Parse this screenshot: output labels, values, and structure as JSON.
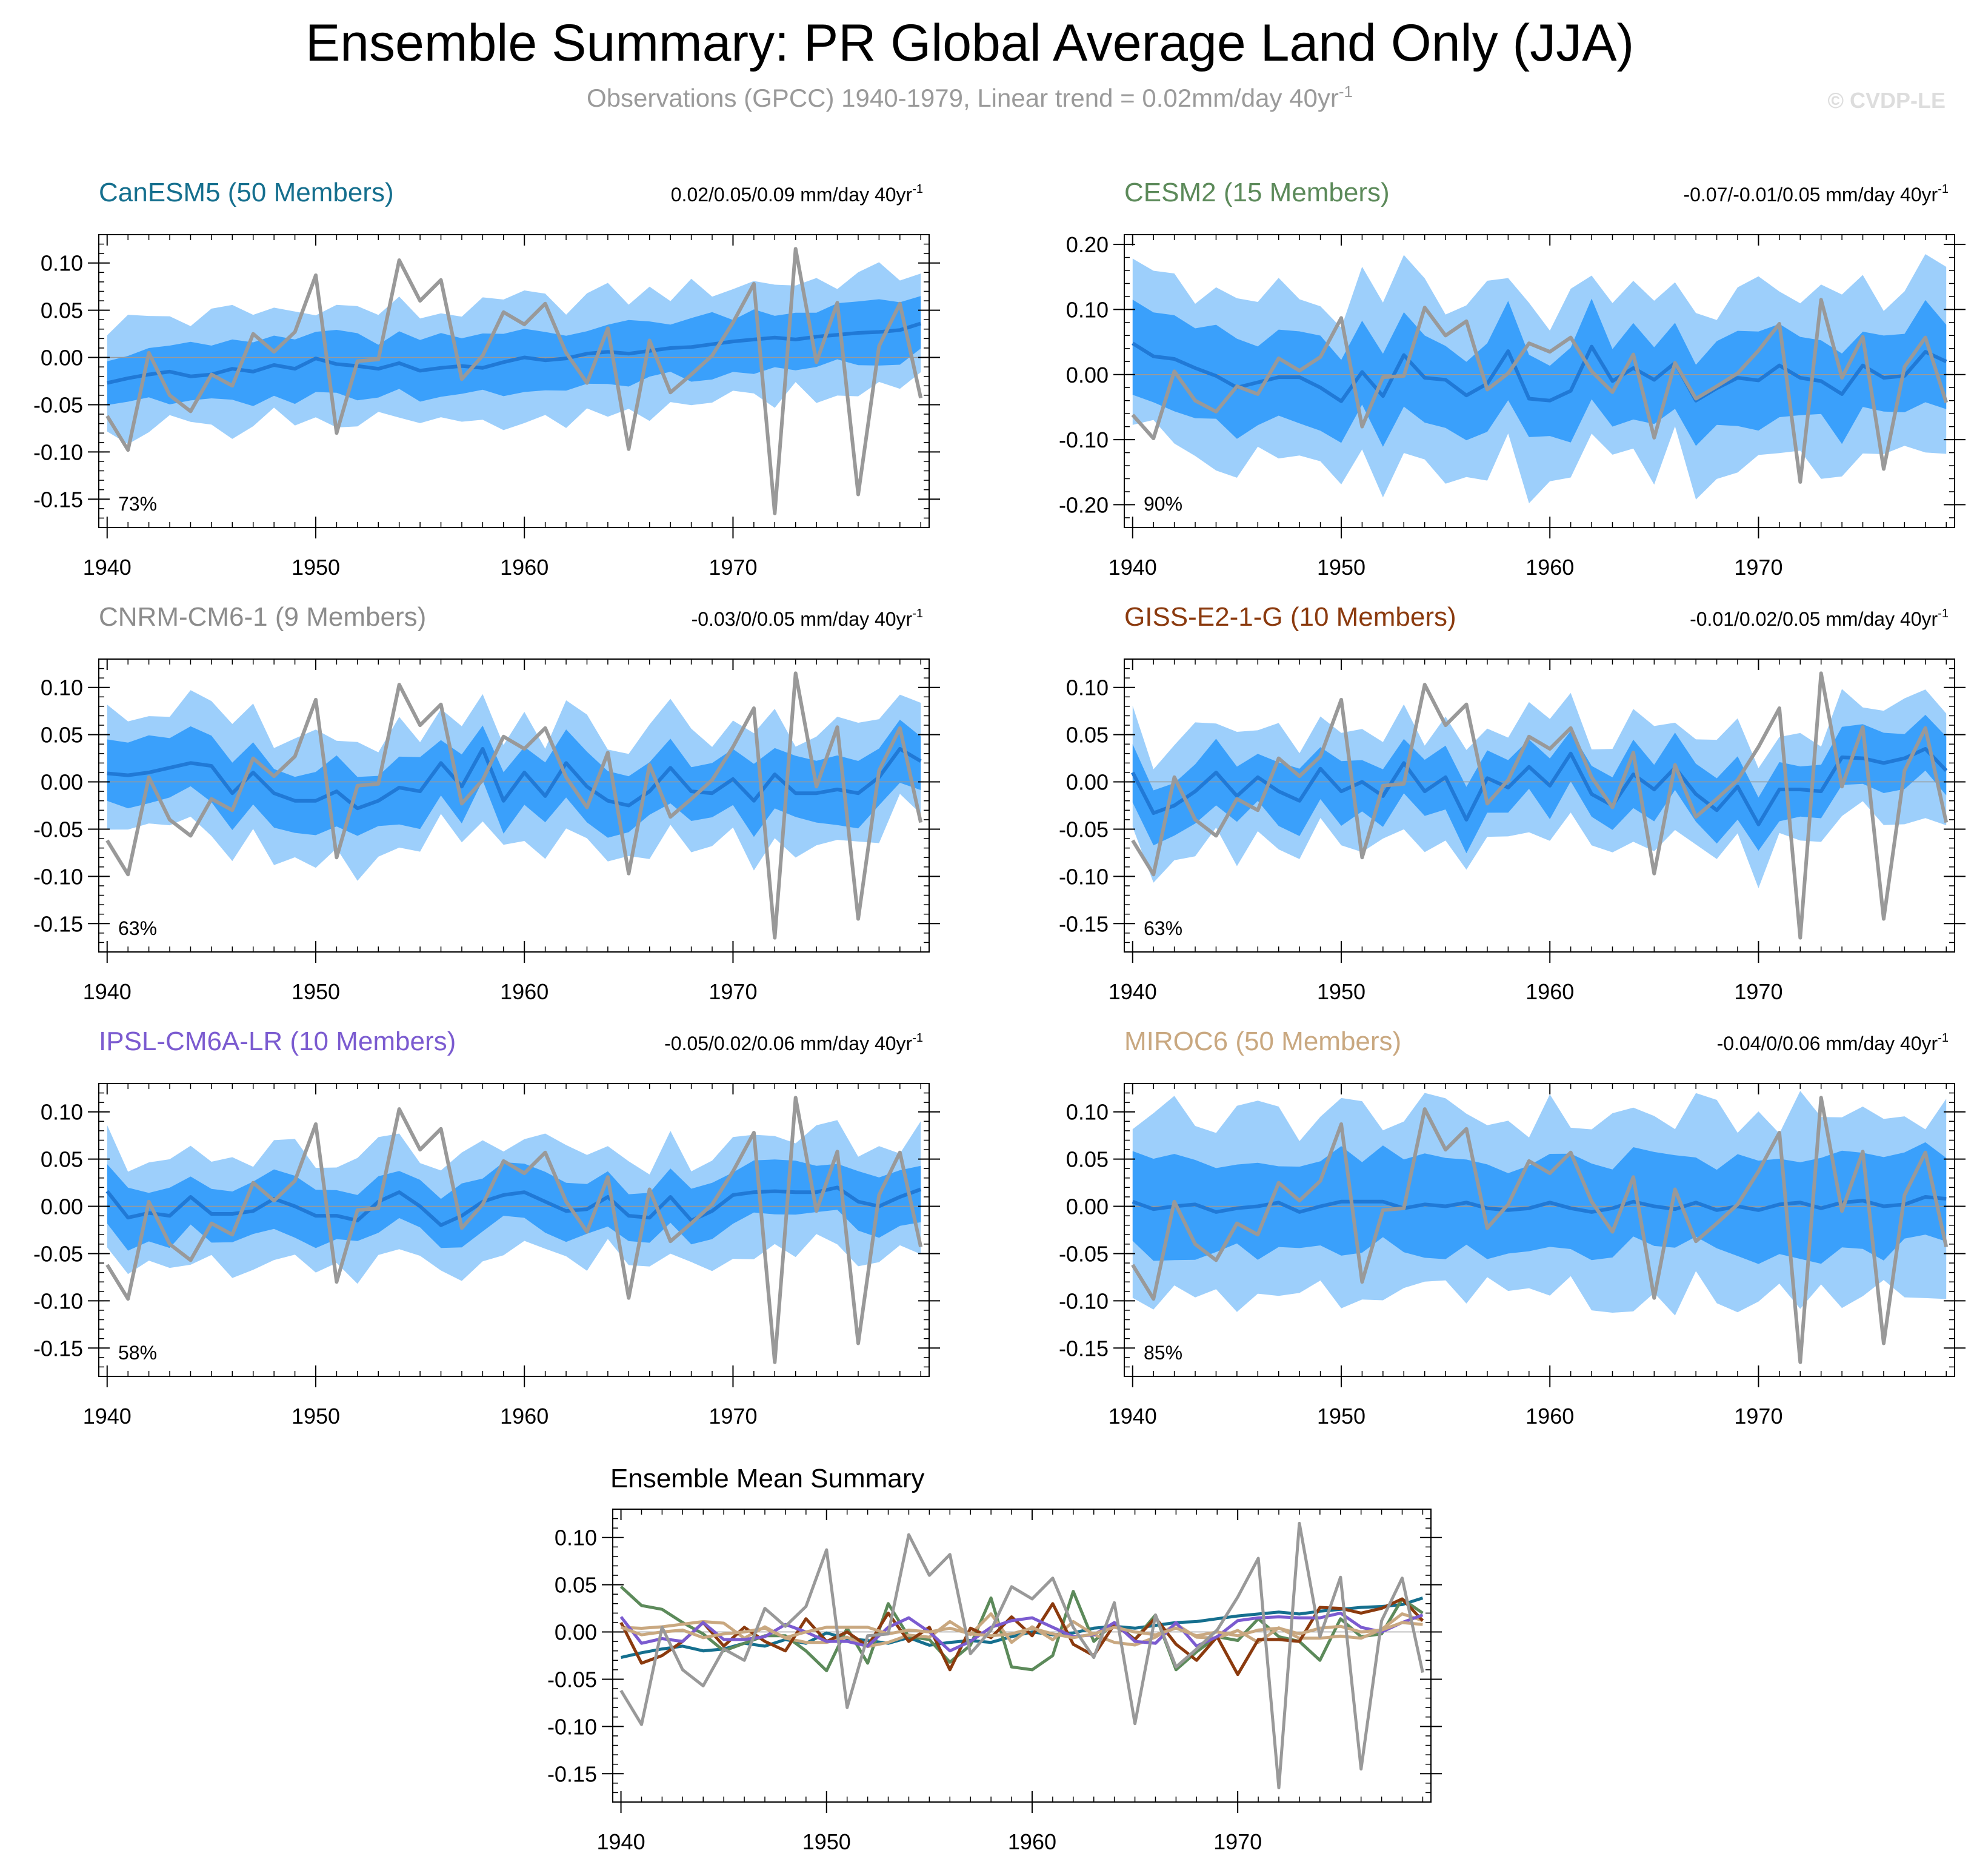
{
  "title": "Ensemble Summary: PR Global Average Land Only (JJA)",
  "subtitle_main": "Observations (GPCC) 1940-1979, Linear trend = 0.02mm/day 40yr",
  "subtitle_sup": "-1",
  "watermark": "© CVDP-LE",
  "colors": {
    "band_outer": "#9dcffb",
    "band_inner": "#3aa0fb",
    "mean_line": "#2079d6",
    "obs_line": "#999999"
  },
  "obs": [
    -0.062,
    -0.098,
    0.005,
    -0.04,
    -0.057,
    -0.018,
    -0.03,
    0.025,
    0.006,
    0.027,
    0.087,
    -0.08,
    -0.004,
    -0.002,
    0.103,
    0.06,
    0.082,
    -0.023,
    0.002,
    0.048,
    0.035,
    0.057,
    0.005,
    -0.027,
    0.031,
    -0.097,
    0.018,
    -0.037,
    -0.018,
    0.002,
    0.037,
    0.078,
    -0.165,
    0.115,
    -0.005,
    0.058,
    -0.145,
    0.012,
    0.057,
    -0.043
  ],
  "chart_data": [
    {
      "type": "area",
      "title": "CanESM5 (50 Members)",
      "title_color": "#156f8e",
      "trend_label": "0.02/0.05/0.09 mm/day 40yr",
      "trend_sup": "-1",
      "percent": "73%",
      "ylim": [
        -0.18,
        0.13
      ],
      "yticks": [
        "0.10",
        "0.05",
        "0.00",
        "-0.05",
        "-0.10",
        "-0.15"
      ],
      "ytick_values": [
        0.1,
        0.05,
        0.0,
        -0.05,
        -0.1,
        -0.15
      ],
      "xticks": [
        "1940",
        "1950",
        "1960",
        "1970"
      ],
      "xlim": [
        1939.6,
        1979.4
      ],
      "x_start": 1940,
      "mean": [
        -0.027,
        -0.022,
        -0.018,
        -0.015,
        -0.02,
        -0.018,
        -0.012,
        -0.015,
        -0.008,
        -0.012,
        -0.001,
        -0.007,
        -0.009,
        -0.012,
        -0.006,
        -0.014,
        -0.011,
        -0.009,
        -0.011,
        -0.005,
        0.0,
        -0.003,
        -0.001,
        0.004,
        0.006,
        0.004,
        0.007,
        0.01,
        0.011,
        0.014,
        0.017,
        0.019,
        0.021,
        0.019,
        0.022,
        0.024,
        0.026,
        0.027,
        0.029,
        0.036
      ],
      "amp": 1.0,
      "inner_hw": 0.03,
      "outer_hw": 0.06
    },
    {
      "type": "area",
      "title": "CESM2 (15 Members)",
      "title_color": "#5c8a5a",
      "trend_label": "-0.07/-0.01/0.05 mm/day 40yr",
      "trend_sup": "-1",
      "percent": "90%",
      "ylim": [
        -0.235,
        0.215
      ],
      "yticks": [
        "0.20",
        "0.10",
        "0.00",
        "-0.10",
        "-0.20"
      ],
      "ytick_values": [
        0.2,
        0.1,
        0.0,
        -0.1,
        -0.2
      ],
      "xticks": [
        "1940",
        "1950",
        "1960",
        "1970"
      ],
      "xlim": [
        1939.6,
        1979.4
      ],
      "x_start": 1940,
      "mean": [
        0.048,
        0.028,
        0.024,
        0.01,
        -0.002,
        -0.02,
        -0.012,
        -0.004,
        -0.004,
        -0.02,
        -0.041,
        0.004,
        -0.033,
        0.03,
        -0.005,
        -0.008,
        -0.032,
        -0.014,
        0.036,
        -0.037,
        -0.04,
        -0.025,
        0.043,
        -0.01,
        0.01,
        -0.008,
        0.018,
        -0.04,
        -0.021,
        -0.005,
        -0.009,
        0.014,
        -0.005,
        -0.01,
        -0.03,
        0.014,
        -0.005,
        -0.002,
        0.035,
        0.02
      ],
      "amp": 1.0,
      "inner_hw": 0.065,
      "outer_hw": 0.13
    },
    {
      "type": "area",
      "title": "CNRM-CM6-1 (9 Members)",
      "title_color": "#8c8c8c",
      "trend_label": "-0.03/0/0.05 mm/day 40yr",
      "trend_sup": "-1",
      "percent": "63%",
      "ylim": [
        -0.18,
        0.13
      ],
      "yticks": [
        "0.10",
        "0.05",
        "0.00",
        "-0.05",
        "-0.10",
        "-0.15"
      ],
      "ytick_values": [
        0.1,
        0.05,
        0.0,
        -0.05,
        -0.1,
        -0.15
      ],
      "xticks": [
        "1940",
        "1950",
        "1960",
        "1970"
      ],
      "xlim": [
        1939.6,
        1979.4
      ],
      "x_start": 1940,
      "mean": [
        0.009,
        0.007,
        0.01,
        0.015,
        0.02,
        0.017,
        -0.012,
        0.01,
        -0.012,
        -0.02,
        -0.02,
        -0.01,
        -0.028,
        -0.02,
        -0.006,
        -0.01,
        0.02,
        -0.005,
        0.035,
        -0.02,
        0.01,
        -0.015,
        0.02,
        -0.005,
        -0.02,
        -0.025,
        -0.01,
        0.015,
        -0.01,
        -0.012,
        0.003,
        -0.02,
        0.008,
        -0.012,
        -0.012,
        -0.008,
        -0.012,
        0.005,
        0.035,
        0.022
      ],
      "amp": 1.0,
      "inner_hw": 0.032,
      "outer_hw": 0.062
    },
    {
      "type": "area",
      "title": "GISS-E2-1-G (10 Members)",
      "title_color": "#8b3a0e",
      "trend_label": "-0.01/0.02/0.05 mm/day 40yr",
      "trend_sup": "-1",
      "percent": "63%",
      "ylim": [
        -0.18,
        0.13
      ],
      "yticks": [
        "0.10",
        "0.05",
        "0.00",
        "-0.05",
        "-0.10",
        "-0.15"
      ],
      "ytick_values": [
        0.1,
        0.05,
        0.0,
        -0.05,
        -0.1,
        -0.15
      ],
      "xticks": [
        "1940",
        "1950",
        "1960",
        "1970"
      ],
      "xlim": [
        1939.6,
        1979.4
      ],
      "x_start": 1940,
      "mean": [
        0.01,
        -0.033,
        -0.025,
        -0.01,
        0.01,
        -0.015,
        0.005,
        -0.01,
        -0.02,
        0.014,
        -0.01,
        0.0,
        -0.015,
        0.02,
        -0.01,
        0.005,
        -0.04,
        0.004,
        -0.006,
        0.016,
        -0.004,
        0.03,
        -0.013,
        -0.025,
        0.008,
        -0.008,
        0.015,
        -0.013,
        -0.03,
        -0.005,
        -0.045,
        -0.008,
        -0.008,
        -0.01,
        0.026,
        0.025,
        0.02,
        0.025,
        0.035,
        0.012
      ],
      "amp": 1.0,
      "inner_hw": 0.03,
      "outer_hw": 0.06
    },
    {
      "type": "area",
      "title": "IPSL-CM6A-LR (10 Members)",
      "title_color": "#7b5bd0",
      "trend_label": "-0.05/0.02/0.06 mm/day 40yr",
      "trend_sup": "-1",
      "percent": "58%",
      "ylim": [
        -0.18,
        0.13
      ],
      "yticks": [
        "0.10",
        "0.05",
        "0.00",
        "-0.05",
        "-0.10",
        "-0.15"
      ],
      "ytick_values": [
        0.1,
        0.05,
        0.0,
        -0.05,
        -0.1,
        -0.15
      ],
      "xticks": [
        "1940",
        "1950",
        "1960",
        "1970"
      ],
      "xlim": [
        1939.6,
        1979.4
      ],
      "x_start": 1940,
      "mean": [
        0.016,
        -0.012,
        -0.007,
        -0.01,
        0.01,
        -0.008,
        -0.008,
        -0.005,
        0.008,
        0.0,
        -0.01,
        -0.01,
        -0.015,
        0.005,
        0.015,
        0.0,
        -0.02,
        -0.01,
        0.005,
        0.012,
        0.015,
        0.005,
        -0.005,
        -0.003,
        0.01,
        -0.01,
        -0.012,
        0.01,
        -0.015,
        -0.005,
        0.012,
        0.015,
        0.016,
        0.015,
        0.015,
        0.02,
        0.005,
        0.0,
        0.01,
        0.018
      ],
      "amp": 1.0,
      "inner_hw": 0.028,
      "outer_hw": 0.058
    },
    {
      "type": "area",
      "title": "MIROC6 (50 Members)",
      "title_color": "#c9a880",
      "trend_label": "-0.04/0/0.06 mm/day 40yr",
      "trend_sup": "-1",
      "percent": "85%",
      "ylim": [
        -0.18,
        0.13
      ],
      "yticks": [
        "0.10",
        "0.05",
        "0.00",
        "-0.05",
        "-0.10",
        "-0.15"
      ],
      "ytick_values": [
        0.1,
        0.05,
        0.0,
        -0.05,
        -0.1,
        -0.15
      ],
      "xticks": [
        "1940",
        "1950",
        "1960",
        "1970"
      ],
      "xlim": [
        1939.6,
        1979.4
      ],
      "x_start": 1940,
      "mean": [
        0.005,
        -0.003,
        0.0,
        0.002,
        -0.006,
        -0.002,
        0.0,
        0.004,
        -0.006,
        0.0,
        0.005,
        0.005,
        0.005,
        -0.002,
        0.002,
        0.0,
        0.004,
        -0.002,
        -0.004,
        -0.002,
        0.004,
        -0.002,
        -0.006,
        -0.002,
        0.005,
        0.0,
        -0.003,
        0.004,
        -0.004,
        0.0,
        -0.004,
        0.002,
        0.004,
        -0.002,
        0.004,
        0.006,
        0.0,
        0.002,
        0.01,
        0.008
      ],
      "amp": 1.0,
      "inner_hw": 0.048,
      "outer_hw": 0.095
    },
    {
      "type": "line",
      "title": "Ensemble Mean Summary",
      "title_color": "#000000",
      "ylim": [
        -0.18,
        0.13
      ],
      "yticks": [
        "0.10",
        "0.05",
        "0.00",
        "-0.05",
        "-0.10",
        "-0.15"
      ],
      "ytick_values": [
        0.1,
        0.05,
        0.0,
        -0.05,
        -0.1,
        -0.15
      ],
      "xticks": [
        "1940",
        "1950",
        "1960",
        "1970"
      ],
      "xlim": [
        1939.6,
        1979.4
      ],
      "x_start": 1940,
      "series": [
        {
          "name": "CanESM5",
          "color": "#156f8e",
          "ref": 0
        },
        {
          "name": "CESM2",
          "color": "#5c8a5a",
          "ref": 1
        },
        {
          "name": "CNRM-CM6-1",
          "color": "#c9a880",
          "ref": 2,
          "scale": 0.55
        },
        {
          "name": "GISS-E2-1-G",
          "color": "#8b3a0e",
          "ref": 3
        },
        {
          "name": "IPSL-CM6A-LR",
          "color": "#7b5bd0",
          "ref": 4
        },
        {
          "name": "MIROC6",
          "color": "#c9a880",
          "ref": 5
        },
        {
          "name": "Observations",
          "color": "#999999",
          "ref": "obs"
        }
      ]
    }
  ]
}
